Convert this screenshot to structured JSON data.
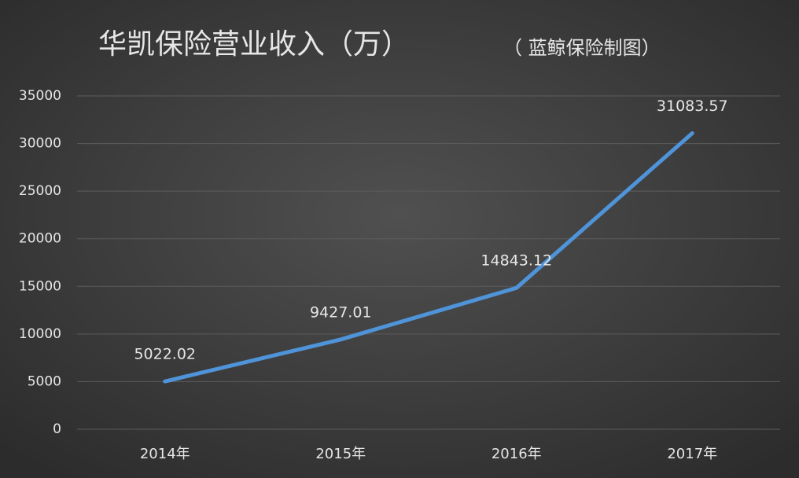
{
  "chart_data": {
    "type": "line",
    "title": "华凯保险营业收入（万）",
    "subtitle": "（ 蓝鲸保险制图）",
    "categories": [
      "2014年",
      "2015年",
      "2016年",
      "2017年"
    ],
    "values": [
      5022.02,
      9427.01,
      14843.12,
      31083.57
    ],
    "color": "#4f93d8",
    "ylim": [
      0,
      35000
    ],
    "yticks": [
      0,
      5000,
      10000,
      15000,
      20000,
      25000,
      30000,
      35000
    ],
    "grid": true
  }
}
